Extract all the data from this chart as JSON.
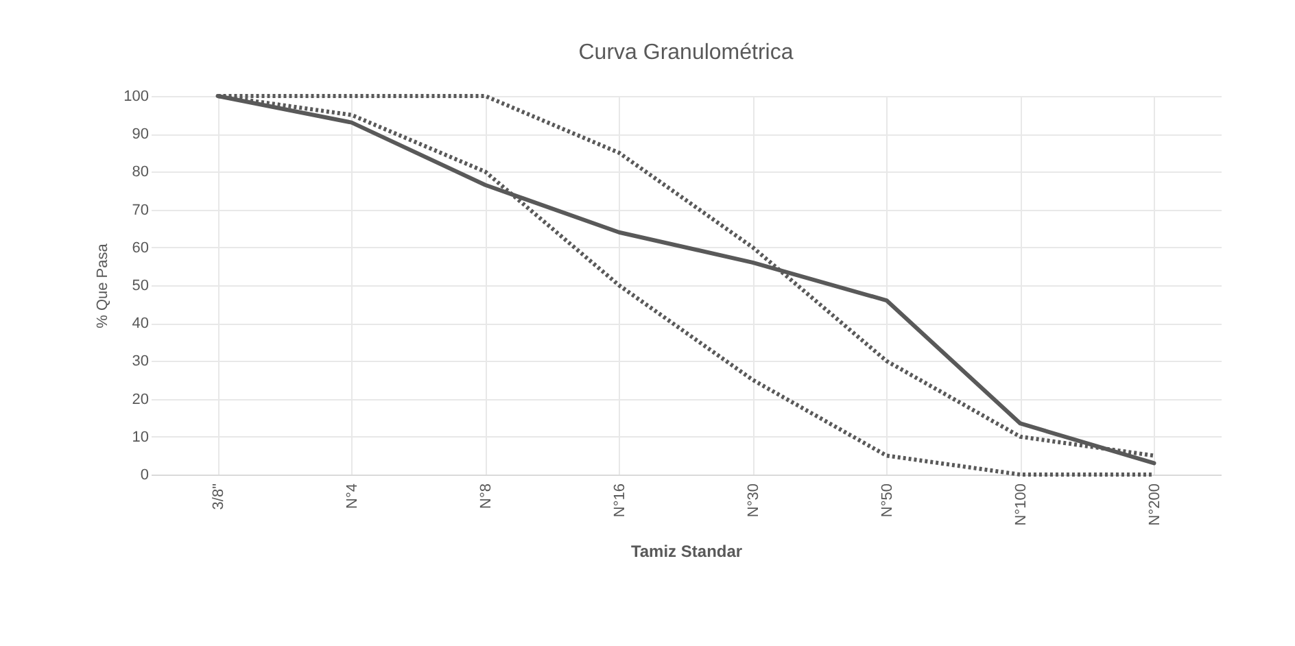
{
  "chart_data": {
    "type": "line",
    "title": "Curva Granulométrica",
    "xlabel": "Tamiz Standar",
    "ylabel": "% Que Pasa",
    "categories": [
      "3/8\"",
      "N°4",
      "N°8",
      "N°16",
      "N°30",
      "N°50",
      "N°100",
      "N°200"
    ],
    "series": [
      {
        "color": "#595959",
        "line_style": "solid",
        "values": [
          100,
          93,
          76.5,
          64,
          56,
          46,
          13.5,
          3
        ]
      },
      {
        "color": "#595959",
        "line_style": "dotted",
        "values": [
          100,
          100,
          100,
          85,
          60,
          30,
          10,
          5
        ]
      },
      {
        "color": "#595959",
        "line_style": "dotted",
        "values": [
          100,
          95,
          80,
          50,
          25,
          5,
          0,
          0
        ]
      }
    ],
    "ylim": [
      0,
      100
    ],
    "yticks": [
      0,
      10,
      20,
      30,
      40,
      50,
      60,
      70,
      80,
      90,
      100
    ],
    "grid": true,
    "marker": "none"
  }
}
